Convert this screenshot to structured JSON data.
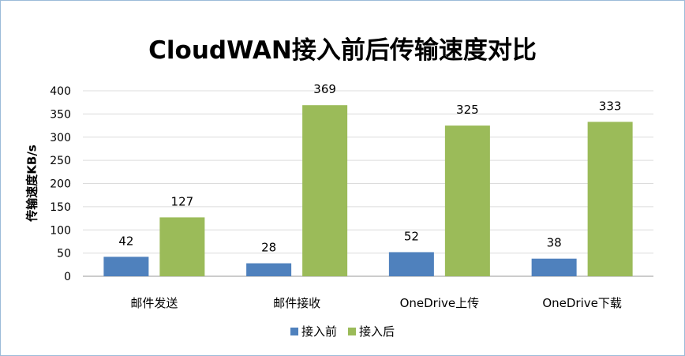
{
  "chart_data": {
    "type": "bar",
    "title": "CloudWAN接入前后传输速度对比",
    "xlabel": "",
    "ylabel": "传输速度KB/s",
    "categories": [
      "邮件发送",
      "邮件接收",
      "OneDrive上传",
      "OneDrive下载"
    ],
    "series": [
      {
        "name": "接入前",
        "values": [
          42,
          28,
          52,
          38
        ],
        "color": "#4f81bd"
      },
      {
        "name": "接入后",
        "values": [
          127,
          369,
          325,
          333
        ],
        "color": "#9bbb59"
      }
    ],
    "ylim": [
      0,
      400
    ],
    "yticks": [
      0,
      50,
      100,
      150,
      200,
      250,
      300,
      350,
      400
    ],
    "grid": true,
    "legend_position": "bottom",
    "data_labels": true
  }
}
